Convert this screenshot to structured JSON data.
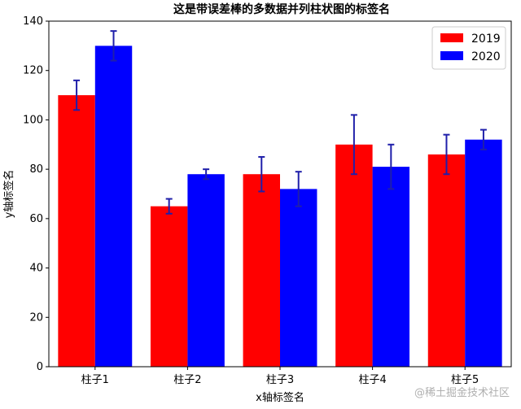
{
  "chart_data": {
    "type": "bar",
    "title": "这是带误差棒的多数据并列柱状图的标签名",
    "xlabel": "x轴标签名",
    "ylabel": "y轴标签名",
    "categories": [
      "柱子1",
      "柱子2",
      "柱子3",
      "柱子4",
      "柱子5"
    ],
    "ylim": [
      0,
      140
    ],
    "yticks": [
      0,
      20,
      40,
      60,
      80,
      100,
      120,
      140
    ],
    "grid": false,
    "legend_position": "top-right",
    "series": [
      {
        "name": "2019",
        "color": "#ff0000",
        "values": [
          110,
          65,
          78,
          90,
          86
        ],
        "errors": [
          6,
          3,
          7,
          12,
          8
        ]
      },
      {
        "name": "2020",
        "color": "#0000ff",
        "values": [
          130,
          78,
          72,
          81,
          92
        ],
        "errors": [
          6,
          2,
          7,
          9,
          4
        ]
      }
    ],
    "error_bar_color": "#1f1faa"
  },
  "watermark": "@稀土掘金技术社区"
}
